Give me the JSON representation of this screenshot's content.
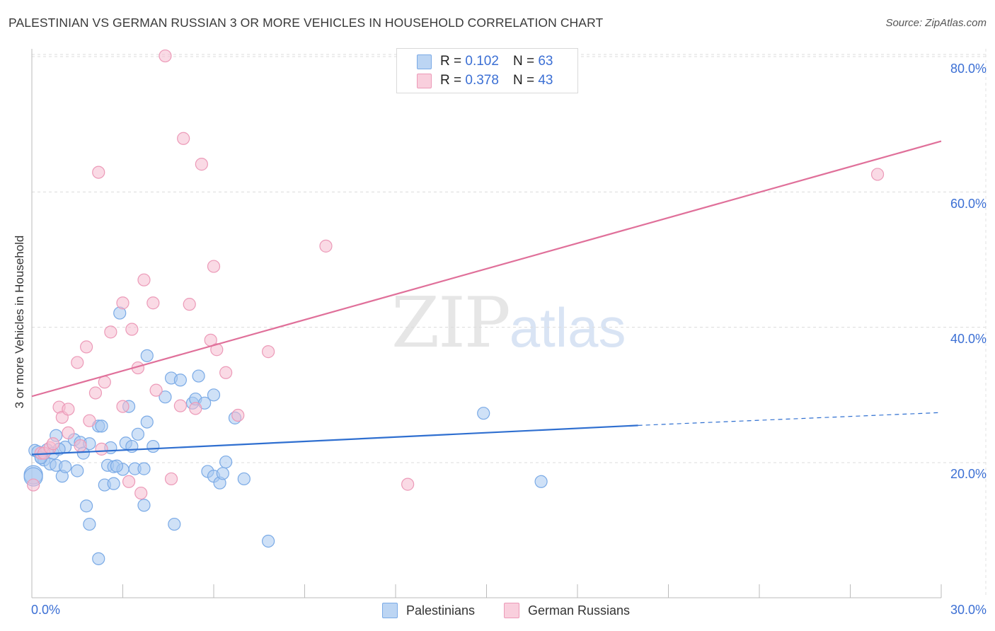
{
  "title": "PALESTINIAN VS GERMAN RUSSIAN 3 OR MORE VEHICLES IN HOUSEHOLD CORRELATION CHART",
  "source": "Source: ZipAtlas.com",
  "watermark": {
    "zip": "ZIP",
    "atlas": "atlas"
  },
  "legend": {
    "rows": [
      {
        "r_label": "R = ",
        "r_value": "0.102",
        "n_label": "N = ",
        "n_value": "63"
      },
      {
        "r_label": "R = ",
        "r_value": "0.378",
        "n_label": "N = ",
        "n_value": "43"
      }
    ],
    "bottom": [
      "Palestinians",
      "German Russians"
    ]
  },
  "colors": {
    "palestinians_fill": "#a8c8f0",
    "palestinians_stroke": "#7aaae6",
    "palestinians_line": "#2f6fd0",
    "german_russians_fill": "#f6bcd0",
    "german_russians_stroke": "#ec9ab8",
    "german_russians_line": "#e0709a",
    "tick_label": "#3b6fd4"
  },
  "chart_data": {
    "type": "scatter",
    "title": "PALESTINIAN VS GERMAN RUSSIAN 3 OR MORE VEHICLES IN HOUSEHOLD CORRELATION CHART",
    "xlabel": "",
    "ylabel": "3 or more Vehicles in Household",
    "xlim": [
      0,
      30
    ],
    "ylim": [
      0,
      82
    ],
    "x_tick_labels": [
      "0.0%",
      "30.0%"
    ],
    "y_ticks": [
      20,
      40,
      60,
      80
    ],
    "y_tick_labels": [
      "20.0%",
      "40.0%",
      "60.0%",
      "80.0%"
    ],
    "grid": true,
    "legend_position": "top-center",
    "series": [
      {
        "name": "Palestinians",
        "r": 0.102,
        "n": 63,
        "trend": {
          "x0": 0,
          "y0": 21.2,
          "x1": 20,
          "y1": 25.5,
          "dashed_to_x": 30,
          "dashed_to_y": 27.4
        },
        "points": [
          [
            0.05,
            18.2
          ],
          [
            0.1,
            21.8
          ],
          [
            0.2,
            21.6
          ],
          [
            0.3,
            20.8
          ],
          [
            0.4,
            20.4
          ],
          [
            0.5,
            21.9
          ],
          [
            0.6,
            19.8
          ],
          [
            0.7,
            21.4
          ],
          [
            0.8,
            24.0
          ],
          [
            0.8,
            19.6
          ],
          [
            1.0,
            18.0
          ],
          [
            1.1,
            19.4
          ],
          [
            1.1,
            22.3
          ],
          [
            1.4,
            23.4
          ],
          [
            1.5,
            18.8
          ],
          [
            1.6,
            23.0
          ],
          [
            1.7,
            21.4
          ],
          [
            1.8,
            13.6
          ],
          [
            1.9,
            10.9
          ],
          [
            2.2,
            25.4
          ],
          [
            2.3,
            25.4
          ],
          [
            2.2,
            5.8
          ],
          [
            2.4,
            16.7
          ],
          [
            2.5,
            19.6
          ],
          [
            2.6,
            22.2
          ],
          [
            2.7,
            16.9
          ],
          [
            2.7,
            19.4
          ],
          [
            2.9,
            42.1
          ],
          [
            3.0,
            19.0
          ],
          [
            3.1,
            22.9
          ],
          [
            3.2,
            28.3
          ],
          [
            3.3,
            22.4
          ],
          [
            3.4,
            19.1
          ],
          [
            3.5,
            24.2
          ],
          [
            3.7,
            19.1
          ],
          [
            3.7,
            13.7
          ],
          [
            3.8,
            26.0
          ],
          [
            3.8,
            35.8
          ],
          [
            4.0,
            22.4
          ],
          [
            4.4,
            29.7
          ],
          [
            4.6,
            32.5
          ],
          [
            4.7,
            10.9
          ],
          [
            4.9,
            32.2
          ],
          [
            5.3,
            28.8
          ],
          [
            5.4,
            29.4
          ],
          [
            5.5,
            32.8
          ],
          [
            5.7,
            28.8
          ],
          [
            5.8,
            18.7
          ],
          [
            6.0,
            30.0
          ],
          [
            6.0,
            18.0
          ],
          [
            6.2,
            17.0
          ],
          [
            6.3,
            18.4
          ],
          [
            6.4,
            20.1
          ],
          [
            6.7,
            26.6
          ],
          [
            7.0,
            17.6
          ],
          [
            7.8,
            8.4
          ],
          [
            14.9,
            27.3
          ],
          [
            16.8,
            17.2
          ],
          [
            0.3,
            20.7
          ],
          [
            1.9,
            22.8
          ],
          [
            0.9,
            22.0
          ],
          [
            0.05,
            17.9
          ],
          [
            2.8,
            19.5
          ]
        ]
      },
      {
        "name": "German Russians",
        "r": 0.378,
        "n": 43,
        "trend": {
          "x0": 0,
          "y0": 29.8,
          "x1": 30,
          "y1": 67.5
        },
        "points": [
          [
            0.05,
            16.7
          ],
          [
            0.3,
            21.4
          ],
          [
            0.4,
            21.4
          ],
          [
            0.6,
            22.2
          ],
          [
            0.7,
            22.8
          ],
          [
            0.9,
            28.2
          ],
          [
            1.0,
            26.7
          ],
          [
            1.2,
            27.9
          ],
          [
            1.2,
            24.4
          ],
          [
            1.5,
            34.8
          ],
          [
            1.6,
            22.5
          ],
          [
            1.8,
            37.1
          ],
          [
            1.9,
            26.2
          ],
          [
            2.1,
            30.3
          ],
          [
            2.2,
            62.9
          ],
          [
            2.3,
            22.0
          ],
          [
            2.4,
            31.9
          ],
          [
            2.6,
            39.3
          ],
          [
            3.0,
            43.6
          ],
          [
            3.0,
            28.3
          ],
          [
            3.2,
            17.2
          ],
          [
            3.3,
            39.7
          ],
          [
            3.5,
            34.0
          ],
          [
            3.6,
            15.5
          ],
          [
            3.7,
            47.0
          ],
          [
            4.0,
            43.6
          ],
          [
            4.1,
            30.7
          ],
          [
            4.4,
            80.1
          ],
          [
            4.6,
            17.6
          ],
          [
            4.9,
            28.4
          ],
          [
            5.0,
            67.9
          ],
          [
            5.2,
            43.4
          ],
          [
            5.4,
            28.0
          ],
          [
            5.6,
            64.1
          ],
          [
            5.9,
            38.1
          ],
          [
            6.0,
            49.0
          ],
          [
            6.1,
            36.7
          ],
          [
            6.4,
            33.3
          ],
          [
            6.8,
            27.0
          ],
          [
            7.8,
            36.4
          ],
          [
            9.7,
            52.0
          ],
          [
            12.4,
            16.8
          ],
          [
            27.9,
            62.6
          ]
        ]
      }
    ]
  }
}
